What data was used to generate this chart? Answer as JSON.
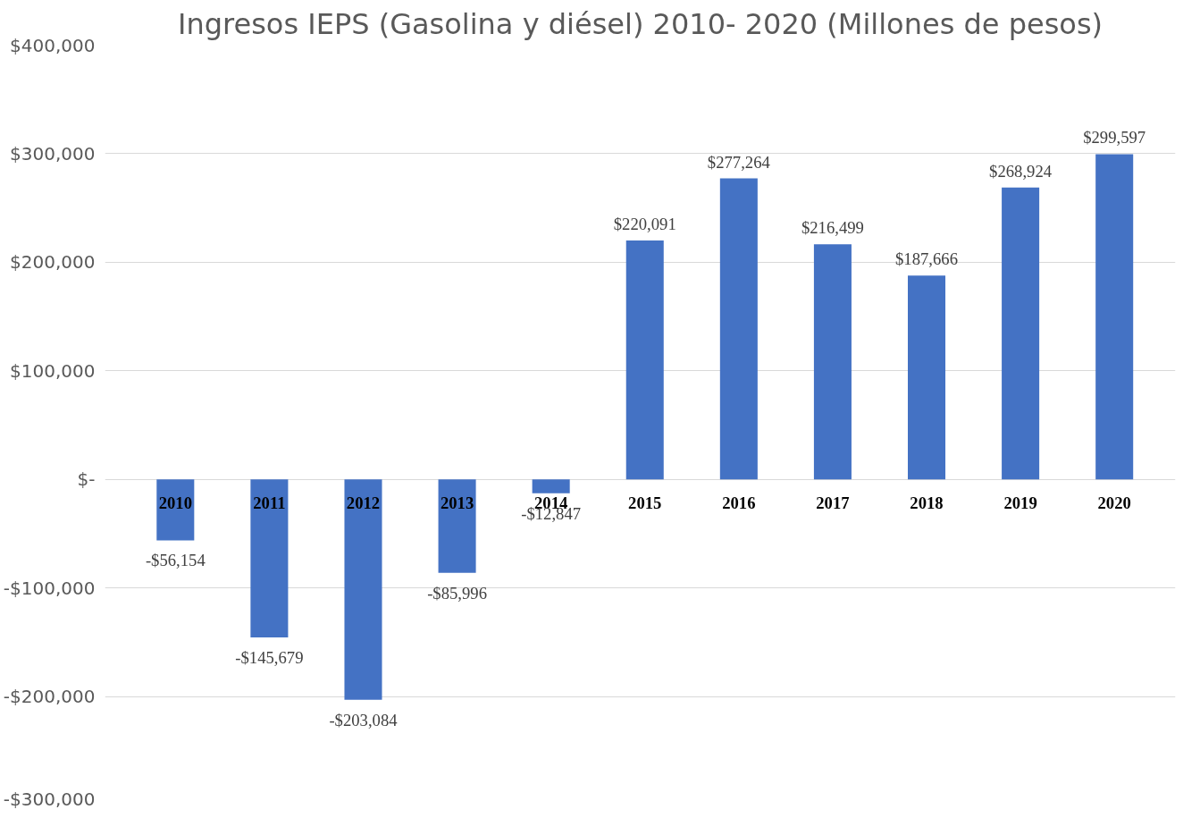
{
  "chart_data": {
    "type": "bar",
    "title": "Ingresos IEPS (Gasolina y diésel) 2010- 2020 (Millones de pesos)",
    "categories": [
      "2010",
      "2011",
      "2012",
      "2013",
      "2014",
      "2015",
      "2016",
      "2017",
      "2018",
      "2019",
      "2020"
    ],
    "values": [
      -56154,
      -145679,
      -203084,
      -85996,
      -12847,
      220091,
      277264,
      216499,
      187666,
      268924,
      299597
    ],
    "value_labels": [
      "-$56,154",
      "-$145,679",
      "-$203,084",
      "-$85,996",
      "-$12,847",
      "$220,091",
      "$277,264",
      "$216,499",
      "$187,666",
      "$268,924",
      "$299,597"
    ],
    "color": "#4472c4",
    "ylim": [
      -300000,
      400000
    ],
    "yticks": [
      {
        "value": -300000,
        "label": "-$300,000"
      },
      {
        "value": -200000,
        "label": "-$200,000"
      },
      {
        "value": -100000,
        "label": "-$100,000"
      },
      {
        "value": 0,
        "label": "$-"
      },
      {
        "value": 100000,
        "label": "$100,000"
      },
      {
        "value": 200000,
        "label": "$200,000"
      },
      {
        "value": 300000,
        "label": "$300,000"
      },
      {
        "value": 400000,
        "label": "$400,000"
      }
    ],
    "grid": "y"
  }
}
